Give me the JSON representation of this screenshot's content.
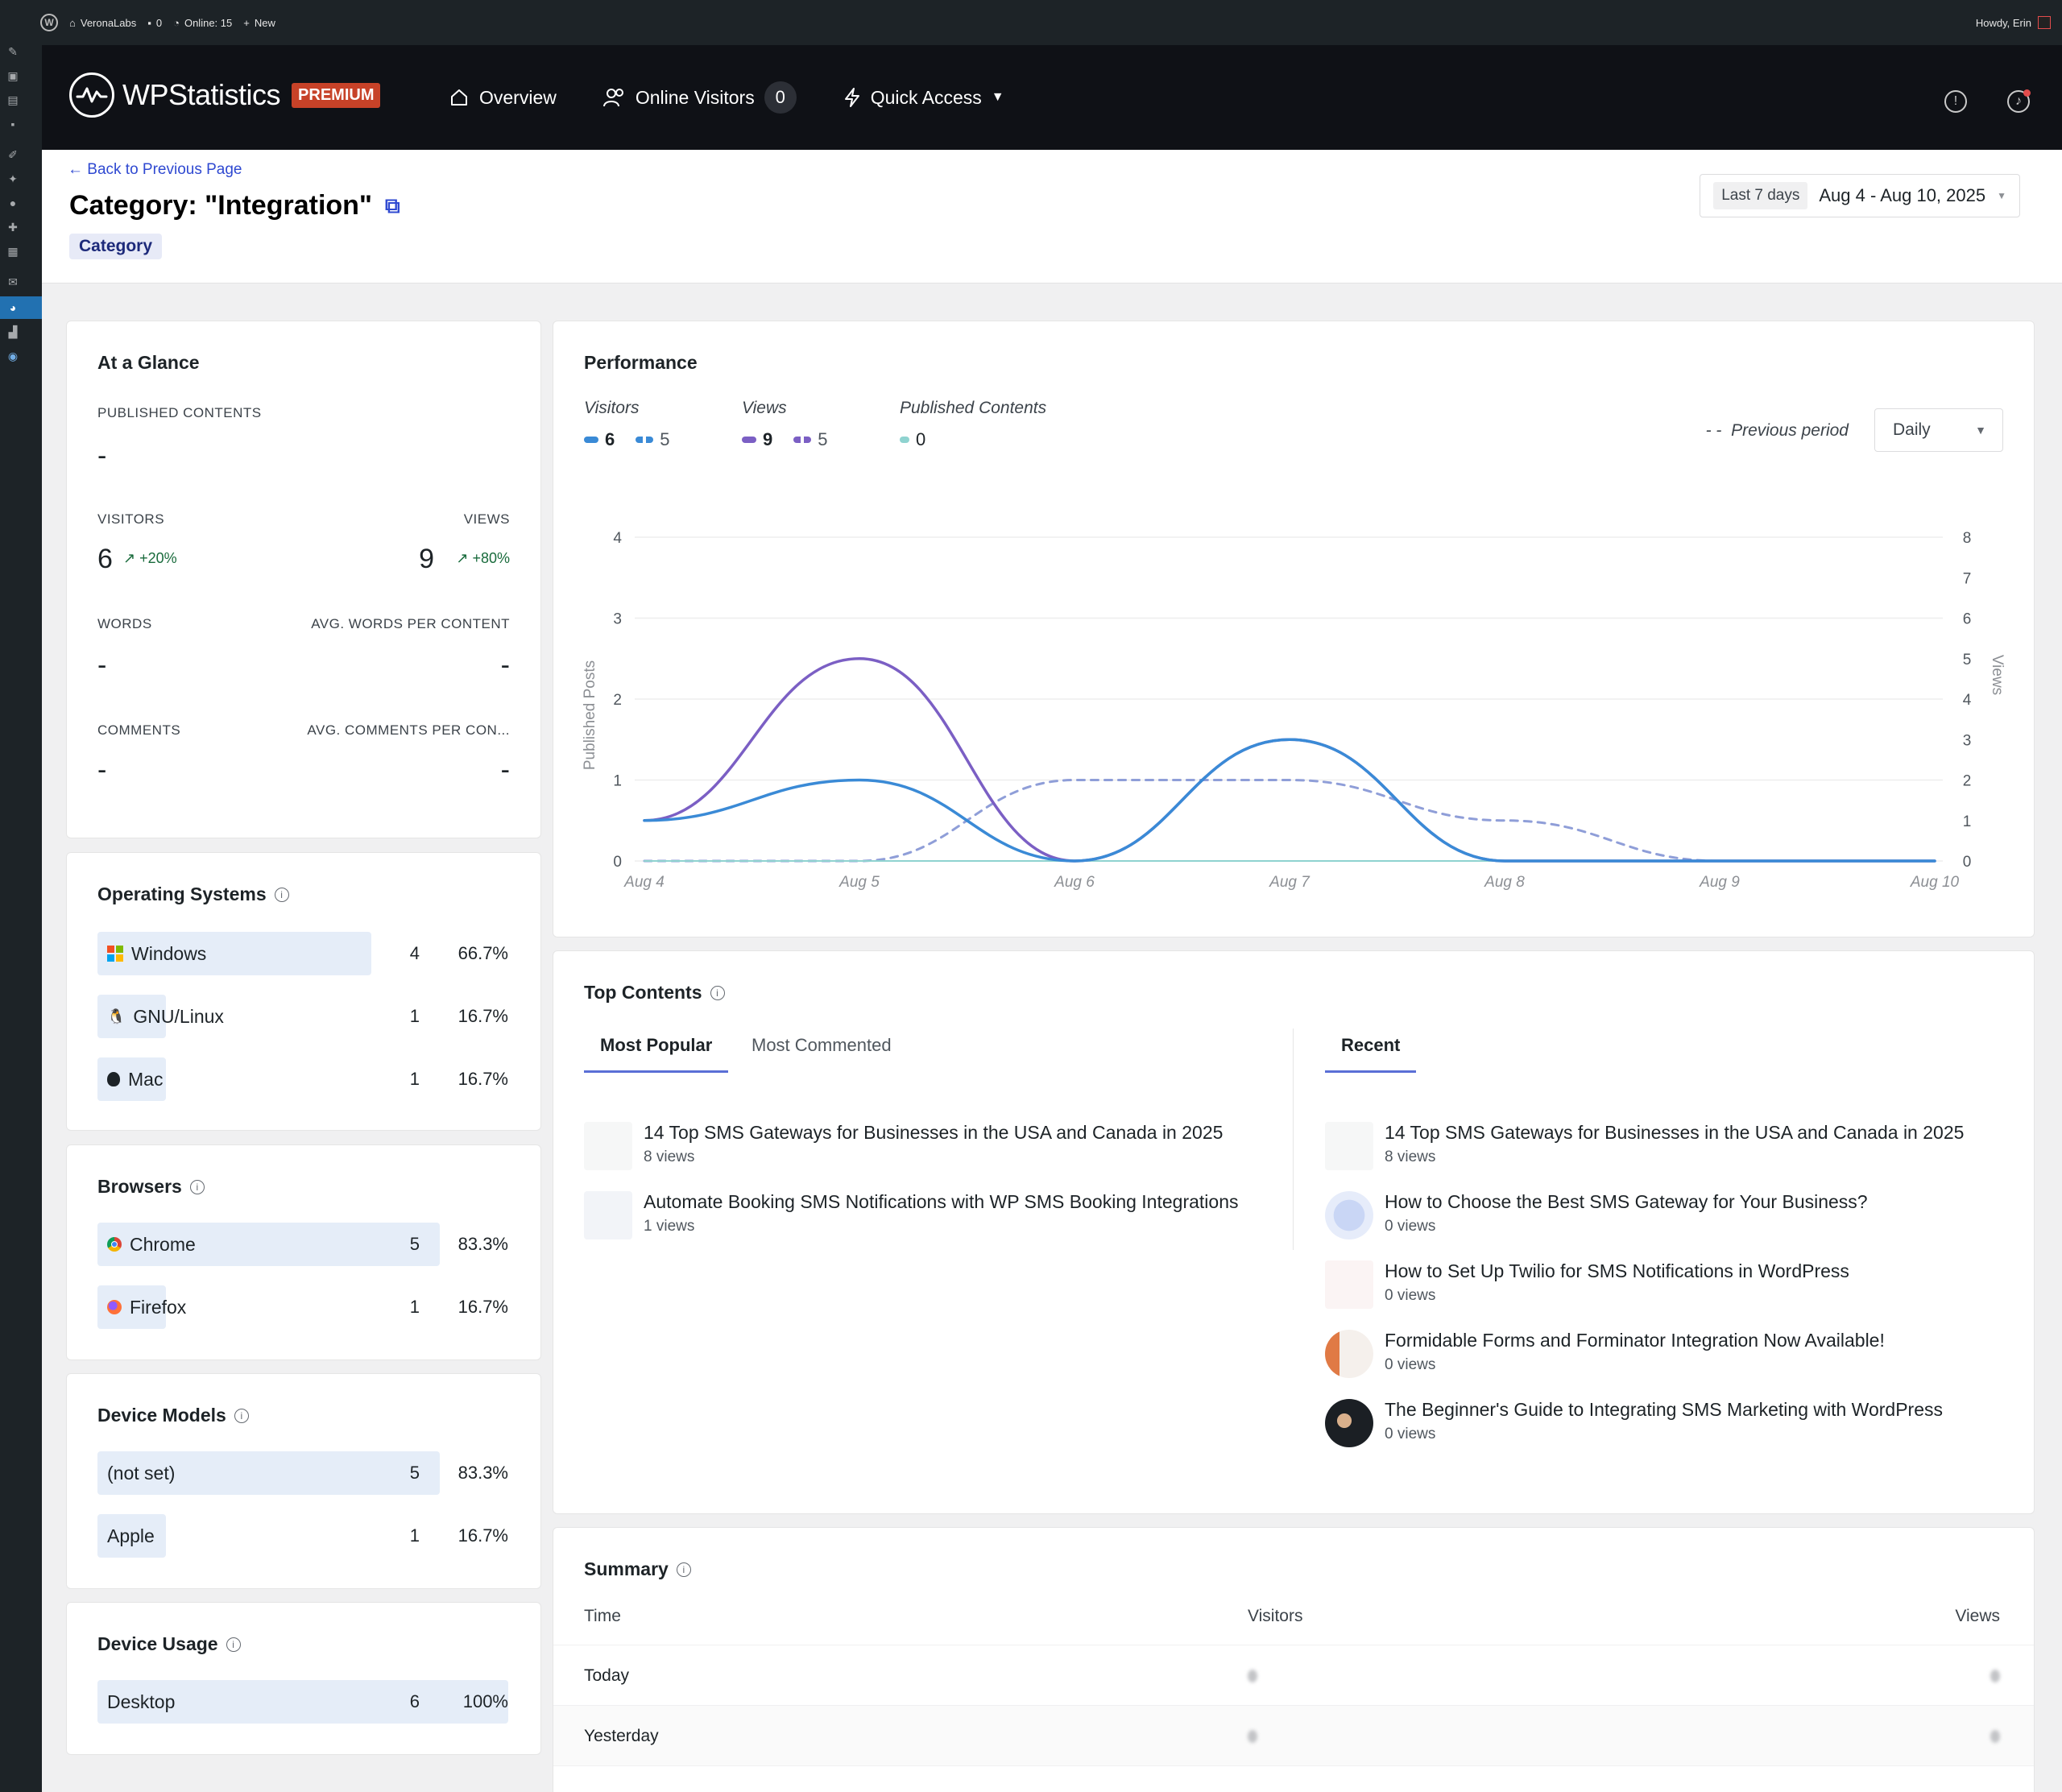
{
  "adminbar": {
    "site_name": "VeronaLabs",
    "comments": "0",
    "online": "Online: 15",
    "new": "New",
    "howdy": "Howdy, Erin"
  },
  "header": {
    "brand": "WPStatistics",
    "badge": "PREMIUM",
    "nav": {
      "overview": "Overview",
      "online_visitors": "Online Visitors",
      "online_count": "0",
      "quick_access": "Quick Access"
    }
  },
  "page": {
    "back_link": "Back to Previous Page",
    "title": "Category: \"Integration\"",
    "badge": "Category",
    "date_chip": "Last 7 days",
    "date_range": "Aug 4 - Aug 10, 2025"
  },
  "glance": {
    "title": "At a Glance",
    "published_label": "PUBLISHED CONTENTS",
    "published_value": "-",
    "visitors_label": "VISITORS",
    "visitors_value": "6",
    "visitors_change": "+20%",
    "views_label": "VIEWS",
    "views_value": "9",
    "views_change": "+80%",
    "words_label": "WORDS",
    "words_value": "-",
    "avg_words_label": "AVG. WORDS PER CONTENT",
    "avg_words_value": "-",
    "comments_label": "COMMENTS",
    "comments_value": "-",
    "avg_comments_label": "AVG. COMMENTS PER CON...",
    "avg_comments_value": "-"
  },
  "os": {
    "title": "Operating Systems",
    "items": [
      {
        "name": "Windows",
        "count": "4",
        "pct": "66.7%",
        "share": 0.667
      },
      {
        "name": "GNU/Linux",
        "count": "1",
        "pct": "16.7%",
        "share": 0.167
      },
      {
        "name": "Mac",
        "count": "1",
        "pct": "16.7%",
        "share": 0.167
      }
    ]
  },
  "browsers": {
    "title": "Browsers",
    "items": [
      {
        "name": "Chrome",
        "count": "5",
        "pct": "83.3%",
        "share": 0.833
      },
      {
        "name": "Firefox",
        "count": "1",
        "pct": "16.7%",
        "share": 0.167
      }
    ]
  },
  "device_models": {
    "title": "Device Models",
    "items": [
      {
        "name": "(not set)",
        "count": "5",
        "pct": "83.3%",
        "share": 0.833
      },
      {
        "name": "Apple",
        "count": "1",
        "pct": "16.7%",
        "share": 0.167
      }
    ]
  },
  "device_usage": {
    "title": "Device Usage",
    "items": [
      {
        "name": "Desktop",
        "count": "6",
        "pct": "100%",
        "share": 1.0
      }
    ]
  },
  "performance": {
    "title": "Performance",
    "legend": {
      "visitors_title": "Visitors",
      "visitors_current": "6",
      "visitors_prev": "5",
      "views_title": "Views",
      "views_current": "9",
      "views_prev": "5",
      "published_title": "Published Contents",
      "published_current": "0"
    },
    "previous_period": "Previous period",
    "interval": "Daily",
    "colors": {
      "visitors": "#3a8ad6",
      "views": "#7b5fc4",
      "views_prev": "#8f9ed8",
      "published": "#8fd3d0"
    }
  },
  "chart_data": {
    "type": "line",
    "x": [
      "Aug 4",
      "Aug 5",
      "Aug 6",
      "Aug 7",
      "Aug 8",
      "Aug 9",
      "Aug 10"
    ],
    "ylabel": "Published Posts",
    "ylabel_right": "Views",
    "ylim": [
      0,
      4
    ],
    "ylim_right": [
      0,
      8
    ],
    "yticks": [
      "0",
      "1",
      "2",
      "3",
      "4"
    ],
    "yticks_right": [
      "0",
      "1",
      "2",
      "3",
      "4",
      "5",
      "6",
      "7",
      "8"
    ],
    "series": [
      {
        "name": "Visitors",
        "axis": "right",
        "values": [
          1,
          2,
          0,
          3,
          0,
          0,
          0
        ]
      },
      {
        "name": "Views",
        "axis": "right",
        "values": [
          1,
          5,
          0,
          3,
          0,
          0,
          0
        ]
      },
      {
        "name": "Views (previous period)",
        "axis": "right",
        "dashed": true,
        "values": [
          0,
          0,
          2,
          2,
          1,
          0,
          0
        ]
      },
      {
        "name": "Published Contents",
        "axis": "left",
        "values": [
          0,
          0,
          0,
          0,
          0,
          0,
          0
        ]
      }
    ]
  },
  "top_contents": {
    "title": "Top Contents",
    "tabs": [
      "Most Popular",
      "Most Commented"
    ],
    "recent_tab": "Recent",
    "popular": [
      {
        "title": "14 Top SMS Gateways for Businesses in the USA and Canada in 2025",
        "views": "8 views"
      },
      {
        "title": "Automate Booking SMS Notifications with WP SMS Booking Integrations",
        "views": "1 views"
      }
    ],
    "recent": [
      {
        "title": "14 Top SMS Gateways for Businesses in the USA and Canada in 2025",
        "views": "8 views"
      },
      {
        "title": "How to Choose the Best SMS Gateway for Your Business?",
        "views": "0 views"
      },
      {
        "title": "How to Set Up Twilio for SMS Notifications in WordPress",
        "views": "0 views"
      },
      {
        "title": "Formidable Forms and Forminator Integration Now Available!",
        "views": "0 views"
      },
      {
        "title": "The Beginner's Guide to Integrating SMS Marketing with WordPress",
        "views": "0 views"
      }
    ]
  },
  "summary": {
    "title": "Summary",
    "col_time": "Time",
    "col_visitors": "Visitors",
    "col_views": "Views",
    "rows": [
      "Today",
      "Yesterday"
    ]
  }
}
